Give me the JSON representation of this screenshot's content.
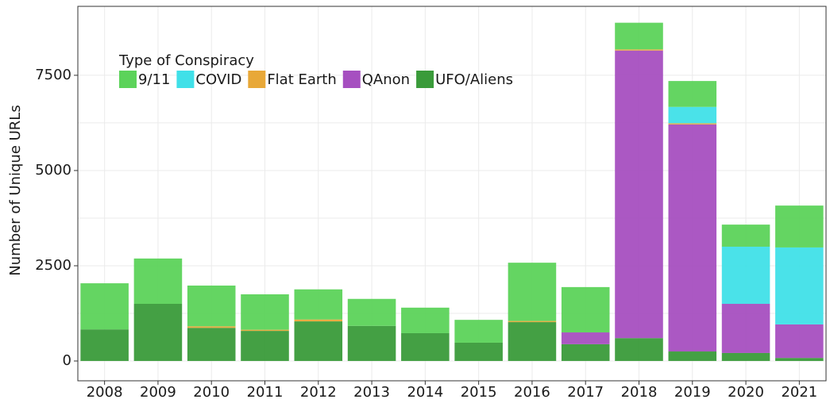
{
  "chart_data": {
    "type": "stacked_bar",
    "y_label": "Number of Unique URLs",
    "legend_title": "Type of Conspiracy",
    "legend": "top-left",
    "grid": true,
    "categories": [
      "2008",
      "2009",
      "2010",
      "2011",
      "2012",
      "2013",
      "2014",
      "2015",
      "2016",
      "2017",
      "2018",
      "2019",
      "2020",
      "2021"
    ],
    "series": [
      {
        "name": "UFO/Aliens",
        "color": "#3a9b3a",
        "values": [
          830,
          1500,
          870,
          790,
          1040,
          920,
          730,
          480,
          1020,
          440,
          600,
          250,
          210,
          80
        ]
      },
      {
        "name": "QAnon",
        "color": "#a64fc0",
        "values": [
          0,
          0,
          0,
          0,
          0,
          0,
          0,
          0,
          0,
          310,
          7550,
          5960,
          1290,
          880
        ]
      },
      {
        "name": "Flat Earth",
        "color": "#e8a838",
        "values": [
          0,
          0,
          40,
          30,
          50,
          0,
          0,
          0,
          30,
          0,
          30,
          30,
          0,
          0
        ]
      },
      {
        "name": "COVID",
        "color": "#40e0e8",
        "values": [
          0,
          0,
          0,
          0,
          0,
          0,
          0,
          0,
          0,
          0,
          0,
          430,
          1500,
          2020
        ]
      },
      {
        "name": "9/11",
        "color": "#5cd35a",
        "values": [
          1210,
          1190,
          1070,
          930,
          790,
          710,
          670,
          600,
          1530,
          1190,
          700,
          680,
          580,
          1100
        ]
      }
    ],
    "legend_order": [
      "9/11",
      "COVID",
      "Flat Earth",
      "QAnon",
      "UFO/Aliens"
    ],
    "ylim": [
      -520,
      9310
    ],
    "yticks": [
      0,
      2500,
      5000,
      7500
    ]
  }
}
